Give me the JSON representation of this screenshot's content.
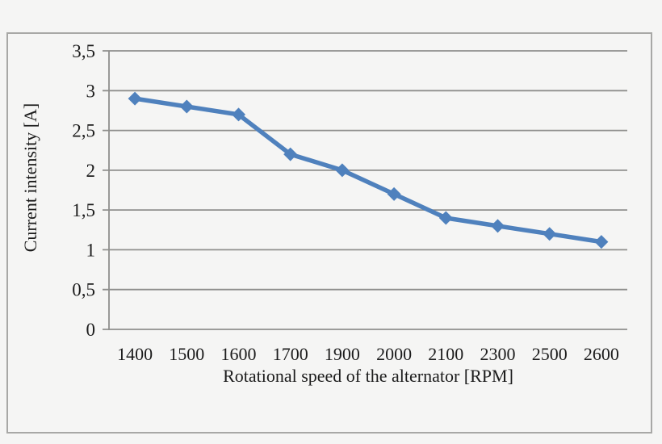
{
  "figure": {
    "background_color": "#f5f5f4",
    "frame_border_color": "#a8a8a6"
  },
  "chart_data": {
    "type": "line",
    "title": "",
    "xlabel": "Rotational speed of the alternator [RPM]",
    "ylabel": "Current intensity [A]",
    "categories": [
      "1400",
      "1500",
      "1600",
      "1700",
      "1900",
      "2000",
      "2100",
      "2300",
      "2500",
      "2600"
    ],
    "series": [
      {
        "name": "Current intensity",
        "values": [
          2.9,
          2.8,
          2.7,
          2.2,
          2.0,
          1.7,
          1.4,
          1.3,
          1.2,
          1.1
        ]
      }
    ],
    "ylim": [
      0,
      3.5
    ],
    "y_tick_values": [
      0,
      0.5,
      1,
      1.5,
      2,
      2.5,
      3,
      3.5
    ],
    "y_tick_labels": [
      "0",
      "0,5",
      "1",
      "1,5",
      "2",
      "2,5",
      "3",
      "3,5"
    ],
    "grid": true,
    "legend_position": "none",
    "marker": "diamond",
    "line_color": "#4f81bd",
    "gridline_color": "#8f8f8d",
    "axis_color": "#8f8f8d",
    "text_color": "#1c1c1c"
  }
}
